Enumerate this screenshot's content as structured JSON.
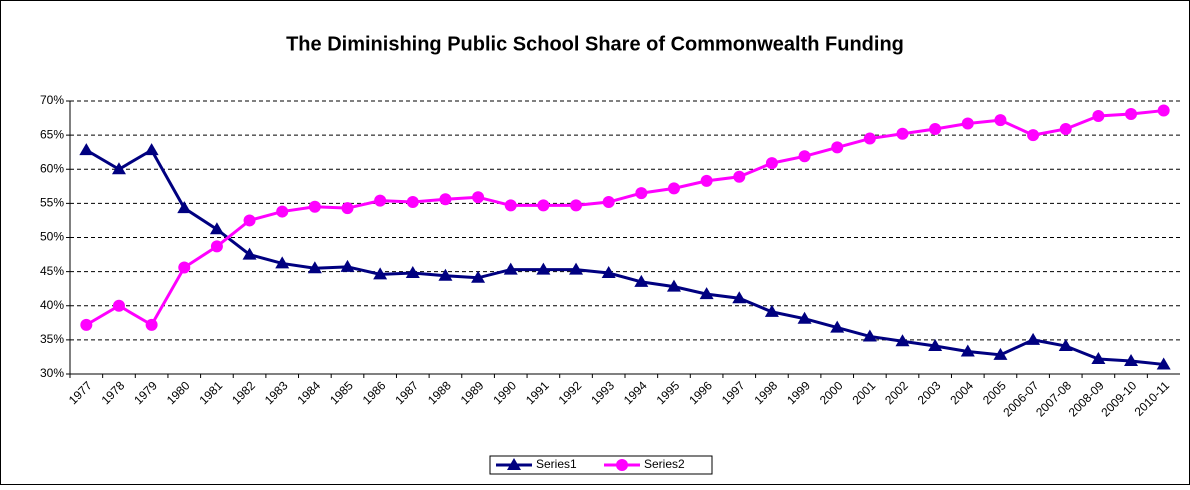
{
  "chart_data": {
    "type": "line",
    "title": "The Diminishing Public School Share of Commonwealth Funding",
    "categories": [
      "1977",
      "1978",
      "1979",
      "1980",
      "1981",
      "1982",
      "1983",
      "1984",
      "1985",
      "1986",
      "1987",
      "1988",
      "1989",
      "1990",
      "1991",
      "1992",
      "1993",
      "1994",
      "1995",
      "1996",
      "1997",
      "1998",
      "1999",
      "2000",
      "2001",
      "2002",
      "2003",
      "2004",
      "2005",
      "2006-07",
      "2007-08",
      "2008-09",
      "2009-10",
      "2010-11"
    ],
    "series": [
      {
        "name": "Series1",
        "color": "#000080",
        "marker": "triangle",
        "values": [
          62.8,
          60,
          62.8,
          54.3,
          51.2,
          47.5,
          46.2,
          45.5,
          45.7,
          44.6,
          44.8,
          44.4,
          44.1,
          45.3,
          45.3,
          45.3,
          44.8,
          43.5,
          42.8,
          41.7,
          41.1,
          39.1,
          38.1,
          36.8,
          35.5,
          34.8,
          34.1,
          33.3,
          32.8,
          35,
          34.1,
          32.2,
          31.9,
          31.4
        ]
      },
      {
        "name": "Series2",
        "color": "#ff00ff",
        "marker": "circle",
        "values": [
          37.2,
          40,
          37.2,
          45.6,
          48.7,
          52.5,
          53.8,
          54.5,
          54.3,
          55.4,
          55.2,
          55.6,
          55.9,
          54.7,
          54.7,
          54.7,
          55.2,
          56.5,
          57.2,
          58.3,
          58.9,
          60.9,
          61.9,
          63.2,
          64.5,
          65.2,
          65.9,
          66.7,
          67.2,
          65,
          65.9,
          67.8,
          68.1,
          68.6
        ]
      }
    ],
    "ylim": [
      30,
      70
    ],
    "yticks": [
      {
        "value": 30,
        "label": "30%"
      },
      {
        "value": 35,
        "label": "35%"
      },
      {
        "value": 40,
        "label": "40%"
      },
      {
        "value": 45,
        "label": "45%"
      },
      {
        "value": 50,
        "label": "50%"
      },
      {
        "value": 55,
        "label": "55%"
      },
      {
        "value": 60,
        "label": "60%"
      },
      {
        "value": 65,
        "label": "65%"
      },
      {
        "value": 70,
        "label": "70%"
      }
    ],
    "grid": true,
    "legend": "bottom"
  }
}
